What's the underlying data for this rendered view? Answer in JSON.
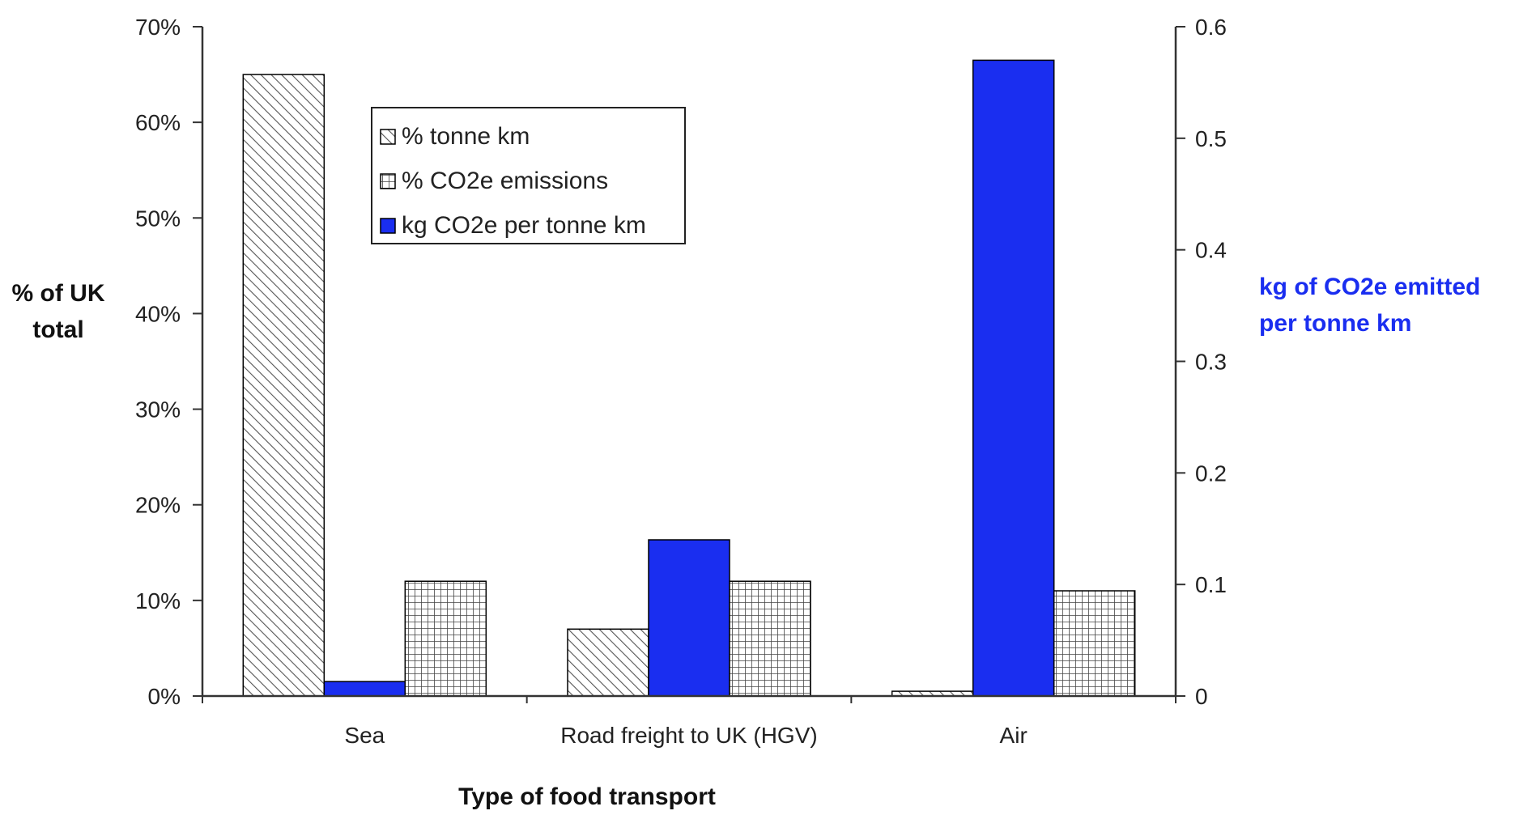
{
  "chart_data": {
    "type": "bar",
    "title": "",
    "categories": [
      "Sea",
      "Road freight to UK (HGV)",
      "Air"
    ],
    "xlabel": "Type of food transport",
    "ylabel": [
      "% of UK",
      "total"
    ],
    "y2label": [
      "kg of CO2e emitted",
      "per tonne km"
    ],
    "ylim": [
      0,
      70
    ],
    "y2lim": [
      0,
      0.6
    ],
    "yticks": [
      "0%",
      "10%",
      "20%",
      "30%",
      "40%",
      "50%",
      "60%",
      "70%"
    ],
    "y2ticks": [
      "0",
      "0.1",
      "0.2",
      "0.3",
      "0.4",
      "0.5",
      "0.6"
    ],
    "series": [
      {
        "name": "% tonne km",
        "axis": "left",
        "pattern": "diagonal-hatch",
        "values": [
          65,
          7,
          0.5
        ]
      },
      {
        "name": "kg CO2e per tonne km",
        "axis": "right",
        "pattern": "solid",
        "values": [
          0.013,
          0.14,
          0.57
        ]
      },
      {
        "name": "% CO2e emissions",
        "axis": "left",
        "pattern": "grid-hatch",
        "values": [
          12,
          12,
          11
        ]
      }
    ],
    "legend": {
      "placement": "top-left",
      "entries": [
        "% tonne km",
        "% CO2e emissions",
        "kg CO2e per tonne km"
      ]
    },
    "grid": false,
    "colors": {
      "solid_bar": "#1a2ef0",
      "bar_outline": "#000000",
      "right_axis_label": "#1a2ef0",
      "axis": "#333333"
    }
  }
}
